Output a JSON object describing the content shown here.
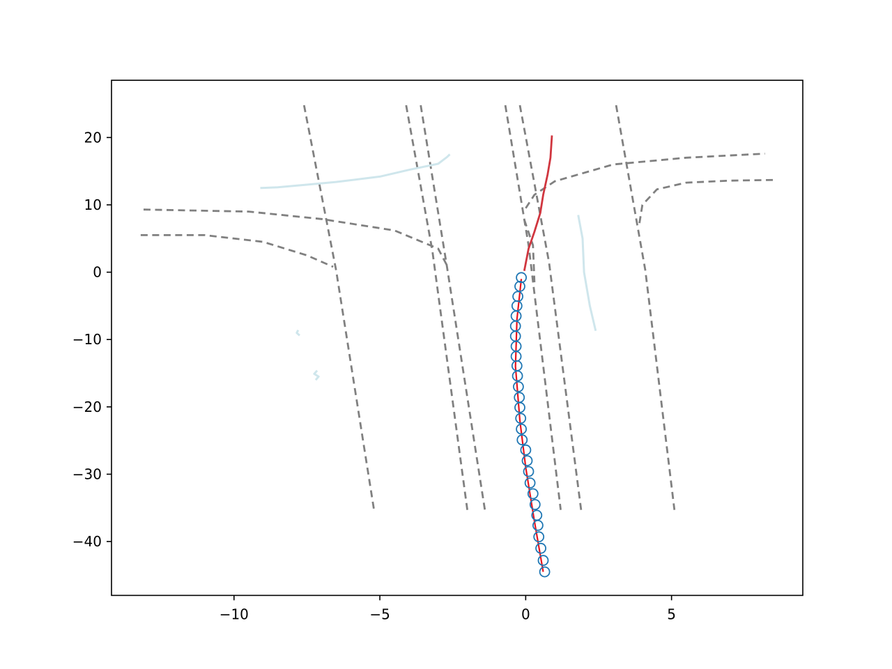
{
  "chart_data": {
    "type": "line",
    "title": "",
    "xlabel": "",
    "ylabel": "",
    "xlim": [
      -14.2,
      9.5
    ],
    "ylim": [
      -48,
      28.5
    ],
    "grid": false,
    "legend": "none",
    "x_ticks": [
      {
        "value": -10,
        "label": "−10"
      },
      {
        "value": -5,
        "label": "−5"
      },
      {
        "value": 0,
        "label": "0"
      },
      {
        "value": 5,
        "label": "5"
      }
    ],
    "y_ticks": [
      {
        "value": 20,
        "label": "20"
      },
      {
        "value": 10,
        "label": "10"
      },
      {
        "value": 0,
        "label": "0"
      },
      {
        "value": -10,
        "label": "−10"
      },
      {
        "value": -20,
        "label": "−20"
      },
      {
        "value": -30,
        "label": "−30"
      },
      {
        "value": -40,
        "label": "−40"
      }
    ],
    "colors": {
      "lane": "#808080",
      "road_edge": "#cfe6ec",
      "future": "#d0363f",
      "history": "#e8141e",
      "history_marker": "#1f77b4"
    },
    "series": [
      {
        "kind": "lane",
        "points": [
          [
            -7.6,
            24.8
          ],
          [
            -6.5,
            0.3
          ],
          [
            -5.2,
            -35.3
          ]
        ]
      },
      {
        "kind": "lane",
        "points": [
          [
            -4.1,
            24.8
          ],
          [
            -3.2,
            3.2
          ],
          [
            -2.0,
            -35.3
          ]
        ]
      },
      {
        "kind": "lane",
        "points": [
          [
            -3.6,
            24.8
          ],
          [
            -2.7,
            0.8
          ],
          [
            -1.4,
            -35.3
          ]
        ]
      },
      {
        "kind": "lane",
        "points": [
          [
            -0.7,
            24.8
          ],
          [
            0.1,
            4.0
          ],
          [
            1.2,
            -35.3
          ]
        ]
      },
      {
        "kind": "lane",
        "points": [
          [
            -0.2,
            24.8
          ],
          [
            0.8,
            1.5
          ],
          [
            1.9,
            -35.3
          ]
        ]
      },
      {
        "kind": "lane",
        "points": [
          [
            3.1,
            24.8
          ],
          [
            4.1,
            0.3
          ],
          [
            5.1,
            -35.3
          ]
        ]
      },
      {
        "kind": "lane",
        "points": [
          [
            -13.1,
            9.3
          ],
          [
            -9.5,
            9.0
          ],
          [
            -7,
            7.9
          ],
          [
            -4.5,
            6.2
          ],
          [
            -3.0,
            3.5
          ],
          [
            -2.7,
            1.0
          ]
        ]
      },
      {
        "kind": "lane",
        "points": [
          [
            -13.2,
            5.5
          ],
          [
            -11.0,
            5.5
          ],
          [
            -9.0,
            4.5
          ],
          [
            -7.5,
            2.5
          ],
          [
            -6.6,
            0.8
          ]
        ]
      },
      {
        "kind": "lane",
        "points": [
          [
            0.0,
            9.5
          ],
          [
            0.3,
            11.5
          ],
          [
            1.0,
            13.5
          ],
          [
            3.0,
            16.0
          ],
          [
            5.5,
            17.0
          ],
          [
            8.2,
            17.6
          ]
        ]
      },
      {
        "kind": "lane",
        "points": [
          [
            3.9,
            7.3
          ],
          [
            4.0,
            10.0
          ],
          [
            4.5,
            12.3
          ],
          [
            5.5,
            13.3
          ],
          [
            7.0,
            13.6
          ],
          [
            8.5,
            13.7
          ]
        ]
      },
      {
        "kind": "lane",
        "points": [
          [
            -0.05,
            7.8
          ],
          [
            0.25,
            4.0
          ],
          [
            0.3,
            -1.5
          ]
        ]
      },
      {
        "kind": "road_edge",
        "points": [
          [
            -9.1,
            12.5
          ],
          [
            -8.5,
            12.6
          ],
          [
            -7.5,
            13.0
          ],
          [
            -6.5,
            13.4
          ],
          [
            -5.0,
            14.2
          ],
          [
            -4.0,
            15.2
          ],
          [
            -3.0,
            16.1
          ],
          [
            -2.7,
            17.1
          ],
          [
            -2.6,
            17.5
          ]
        ]
      },
      {
        "kind": "road_edge",
        "points": [
          [
            1.8,
            8.5
          ],
          [
            1.95,
            5.0
          ],
          [
            2.0,
            0.0
          ],
          [
            2.2,
            -5.0
          ],
          [
            2.4,
            -8.7
          ]
        ]
      },
      {
        "kind": "road_edge",
        "points": [
          [
            -7.8,
            -8.6
          ],
          [
            -7.85,
            -9.0
          ],
          [
            -7.75,
            -9.4
          ]
        ]
      },
      {
        "kind": "road_edge",
        "points": [
          [
            -7.15,
            -14.6
          ],
          [
            -7.25,
            -15.1
          ],
          [
            -7.1,
            -15.5
          ],
          [
            -7.2,
            -16.0
          ]
        ]
      },
      {
        "kind": "future",
        "points": [
          [
            -0.05,
            0.2
          ],
          [
            0.1,
            3.5
          ],
          [
            0.3,
            6.0
          ],
          [
            0.5,
            8.8
          ],
          [
            0.6,
            11.5
          ],
          [
            0.75,
            14.5
          ],
          [
            0.85,
            17.0
          ],
          [
            0.9,
            20.3
          ]
        ]
      },
      {
        "kind": "history",
        "points": [
          [
            0.6,
            -44.5
          ],
          [
            0.3,
            -37.0
          ],
          [
            0.0,
            -29.0
          ],
          [
            -0.2,
            -22.0
          ],
          [
            -0.35,
            -14.0
          ],
          [
            -0.3,
            -7.0
          ],
          [
            -0.15,
            -1.0
          ]
        ]
      }
    ],
    "history_markers": [
      [
        0.65,
        -44.5
      ],
      [
        0.6,
        -42.8
      ],
      [
        0.52,
        -41.0
      ],
      [
        0.45,
        -39.3
      ],
      [
        0.42,
        -37.6
      ],
      [
        0.38,
        -36.1
      ],
      [
        0.32,
        -34.5
      ],
      [
        0.25,
        -32.9
      ],
      [
        0.15,
        -31.3
      ],
      [
        0.1,
        -29.6
      ],
      [
        0.05,
        -28.0
      ],
      [
        0.0,
        -26.4
      ],
      [
        -0.12,
        -24.9
      ],
      [
        -0.15,
        -23.3
      ],
      [
        -0.17,
        -21.7
      ],
      [
        -0.2,
        -20.1
      ],
      [
        -0.22,
        -18.6
      ],
      [
        -0.25,
        -17.0
      ],
      [
        -0.28,
        -15.4
      ],
      [
        -0.3,
        -13.9
      ],
      [
        -0.33,
        -12.5
      ],
      [
        -0.33,
        -11.0
      ],
      [
        -0.35,
        -9.5
      ],
      [
        -0.35,
        -8.0
      ],
      [
        -0.33,
        -6.5
      ],
      [
        -0.3,
        -5.0
      ],
      [
        -0.27,
        -3.6
      ],
      [
        -0.2,
        -2.1
      ],
      [
        -0.15,
        -0.8
      ]
    ]
  }
}
